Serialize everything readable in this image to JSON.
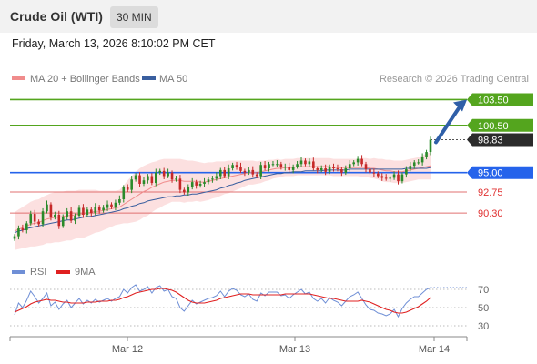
{
  "header": {
    "title": "Crude Oil (WTI)",
    "timeframe": "30 MIN"
  },
  "subtitle": "Friday, March 13, 2026 8:10:02 PM CET",
  "legend": {
    "ma20_label": "MA 20 + Bollinger Bands",
    "ma50_label": "MA 50",
    "credit": "Research © 2026 Trading Central",
    "colors": {
      "ma20": "#f08c8c",
      "ma50": "#3a5f9f",
      "band": "#fbdada"
    }
  },
  "rsi_legend": {
    "rsi_label": "RSI",
    "ma_label": "9MA",
    "colors": {
      "rsi": "#6f8fd6",
      "ma": "#e02020"
    }
  },
  "chart_data": [
    {
      "type": "candlestick",
      "title": "Crude Oil (WTI)",
      "ylim": [
        86.5,
        104.5
      ],
      "last_price": 98.83,
      "x_ticks": [
        "Mar 12",
        "Mar 13",
        "Mar 14"
      ],
      "levels": [
        {
          "value": 103.5,
          "label": "103.50",
          "kind": "resistance",
          "color": "#54a51e"
        },
        {
          "value": 100.5,
          "label": "100.50",
          "kind": "resistance",
          "color": "#54a51e"
        },
        {
          "value": 95.0,
          "label": "95.00",
          "kind": "pivot",
          "color": "#2563eb"
        },
        {
          "value": 92.75,
          "label": "92.75",
          "kind": "support",
          "color": "#e07070"
        },
        {
          "value": 90.3,
          "label": "90.30",
          "kind": "support",
          "color": "#e07070"
        }
      ],
      "closes": [
        87.6,
        88.5,
        88.3,
        89.1,
        90.2,
        89.3,
        89.0,
        90.5,
        91.3,
        89.8,
        90.1,
        88.8,
        89.9,
        90.5,
        89.4,
        90.0,
        90.9,
        90.1,
        90.7,
        90.3,
        91.0,
        90.6,
        90.9,
        91.3,
        91.0,
        91.5,
        91.9,
        93.3,
        93.0,
        94.2,
        94.7,
        93.7,
        94.1,
        94.6,
        93.8,
        95.0,
        95.2,
        94.6,
        95.0,
        94.2,
        94.3,
        93.0,
        92.7,
        93.3,
        93.9,
        93.5,
        93.7,
        93.9,
        94.2,
        94.3,
        94.6,
        95.3,
        94.6,
        95.5,
        95.9,
        95.7,
        95.2,
        95.0,
        95.3,
        94.8,
        94.6,
        95.9,
        95.5,
        96.0,
        96.0,
        96.0,
        95.6,
        95.7,
        95.3,
        95.7,
        96.0,
        96.4,
        96.0,
        96.3,
        95.5,
        95.3,
        95.5,
        95.1,
        95.7,
        95.5,
        95.4,
        95.0,
        95.5,
        96.0,
        96.2,
        96.6,
        96.0,
        95.4,
        95.0,
        94.9,
        94.6,
        94.4,
        94.3,
        94.4,
        94.8,
        94.0,
        94.8,
        95.4,
        95.8,
        96.2,
        96.2,
        96.8,
        97.4,
        98.83
      ],
      "ma20": [
        88.2,
        88.4,
        88.6,
        88.8,
        89.0,
        89.1,
        89.2,
        89.4,
        89.6,
        89.7,
        89.8,
        89.8,
        89.9,
        90.0,
        90.0,
        90.1,
        90.2,
        90.2,
        90.3,
        90.4,
        90.5,
        90.5,
        90.6,
        90.7,
        90.8,
        90.9,
        91.0,
        91.3,
        91.6,
        91.9,
        92.2,
        92.5,
        92.8,
        93.0,
        93.3,
        93.5,
        93.7,
        93.9,
        94.0,
        94.1,
        94.1,
        94.1,
        94.0,
        94.0,
        94.0,
        94.0,
        93.9,
        93.9,
        94.0,
        94.1,
        94.2,
        94.3,
        94.4,
        94.5,
        94.6,
        94.7,
        94.8,
        94.9,
        95.0,
        95.0,
        95.0,
        95.1,
        95.2,
        95.3,
        95.4,
        95.5,
        95.5,
        95.6,
        95.6,
        95.6,
        95.7,
        95.7,
        95.7,
        95.7,
        95.7,
        95.7,
        95.7,
        95.7,
        95.7,
        95.6,
        95.6,
        95.6,
        95.6,
        95.6,
        95.6,
        95.6,
        95.6,
        95.6,
        95.5,
        95.5,
        95.4,
        95.3,
        95.2,
        95.2,
        95.1,
        95.1,
        95.1,
        95.2,
        95.3,
        95.4,
        95.5,
        95.6,
        95.7,
        95.8
      ],
      "ma50": [
        88.0,
        88.2,
        88.3,
        88.5,
        88.6,
        88.7,
        88.8,
        88.9,
        89.0,
        89.1,
        89.2,
        89.3,
        89.4,
        89.5,
        89.5,
        89.6,
        89.7,
        89.8,
        89.9,
        89.9,
        90.0,
        90.1,
        90.2,
        90.3,
        90.4,
        90.5,
        90.6,
        90.8,
        90.9,
        91.1,
        91.2,
        91.4,
        91.5,
        91.7,
        91.8,
        91.9,
        92.0,
        92.1,
        92.2,
        92.2,
        92.3,
        92.3,
        92.4,
        92.4,
        92.5,
        92.5,
        92.6,
        92.7,
        92.8,
        92.9,
        93.0,
        93.2,
        93.3,
        93.5,
        93.6,
        93.8,
        93.9,
        94.1,
        94.2,
        94.3,
        94.4,
        94.5,
        94.6,
        94.7,
        94.8,
        94.9,
        94.9,
        95.0,
        95.0,
        95.1,
        95.1,
        95.1,
        95.2,
        95.2,
        95.2,
        95.2,
        95.2,
        95.3,
        95.3,
        95.3,
        95.3,
        95.3,
        95.3,
        95.4,
        95.4,
        95.4,
        95.4,
        95.4,
        95.4,
        95.4,
        95.4,
        95.4,
        95.4,
        95.4,
        95.4,
        95.4,
        95.4,
        95.5,
        95.5,
        95.5,
        95.5,
        95.5,
        95.5,
        95.6
      ],
      "bb_width": [
        2.2,
        2.3,
        2.4,
        2.5,
        2.6,
        2.7,
        2.7,
        2.8,
        2.8,
        2.9,
        2.9,
        2.9,
        2.9,
        2.9,
        2.9,
        2.8,
        2.8,
        2.8,
        2.7,
        2.6,
        2.5,
        2.4,
        2.3,
        2.2,
        2.1,
        2.0,
        2.0,
        2.2,
        2.5,
        2.7,
        2.9,
        3.0,
        3.0,
        3.0,
        2.9,
        2.8,
        2.8,
        2.7,
        2.6,
        2.5,
        2.5,
        2.5,
        2.5,
        2.4,
        2.4,
        2.3,
        2.3,
        2.2,
        2.2,
        2.1,
        2.1,
        2.0,
        1.9,
        1.9,
        1.8,
        1.7,
        1.6,
        1.5,
        1.4,
        1.4,
        1.3,
        1.3,
        1.2,
        1.2,
        1.1,
        1.1,
        1.0,
        1.0,
        1.0,
        1.0,
        1.0,
        1.0,
        1.0,
        1.0,
        1.0,
        1.0,
        1.0,
        1.0,
        1.0,
        1.0,
        1.0,
        1.0,
        1.0,
        1.0,
        1.0,
        1.0,
        1.1,
        1.1,
        1.1,
        1.2,
        1.2,
        1.3,
        1.3,
        1.3,
        1.3,
        1.3,
        1.3,
        1.3,
        1.3,
        1.3,
        1.3,
        1.4,
        1.5,
        1.6
      ],
      "target": 103.5
    },
    {
      "type": "line",
      "ylim": [
        20,
        80
      ],
      "y_ticks": [
        70,
        50,
        30
      ],
      "rsi": [
        42,
        55,
        50,
        58,
        68,
        62,
        55,
        60,
        66,
        52,
        56,
        48,
        54,
        58,
        50,
        55,
        60,
        54,
        58,
        55,
        59,
        56,
        58,
        60,
        57,
        60,
        62,
        70,
        66,
        72,
        75,
        68,
        70,
        73,
        66,
        72,
        74,
        68,
        70,
        62,
        60,
        50,
        46,
        52,
        58,
        54,
        56,
        58,
        60,
        61,
        63,
        68,
        62,
        68,
        71,
        69,
        64,
        62,
        65,
        59,
        57,
        66,
        63,
        67,
        67,
        67,
        63,
        64,
        60,
        64,
        67,
        70,
        65,
        67,
        60,
        57,
        60,
        55,
        61,
        58,
        56,
        52,
        57,
        62,
        64,
        67,
        60,
        53,
        48,
        47,
        44,
        43,
        41,
        43,
        48,
        40,
        49,
        55,
        59,
        62,
        62,
        66,
        70,
        72
      ],
      "ma9": [
        45,
        47,
        49,
        51,
        54,
        56,
        57,
        58,
        59,
        58,
        58,
        57,
        56,
        56,
        55,
        55,
        55,
        55,
        56,
        56,
        56,
        57,
        57,
        57,
        58,
        58,
        59,
        61,
        62,
        64,
        66,
        67,
        68,
        69,
        70,
        70,
        71,
        71,
        70,
        69,
        67,
        64,
        61,
        58,
        56,
        55,
        55,
        55,
        56,
        57,
        58,
        60,
        61,
        62,
        63,
        64,
        65,
        65,
        65,
        64,
        64,
        64,
        64,
        64,
        64,
        64,
        64,
        65,
        65,
        65,
        65,
        65,
        65,
        65,
        64,
        63,
        62,
        61,
        60,
        60,
        59,
        58,
        57,
        57,
        57,
        57,
        58,
        57,
        56,
        54,
        52,
        50,
        48,
        47,
        45,
        44,
        44,
        45,
        47,
        49,
        51,
        54,
        57,
        61
      ]
    }
  ]
}
